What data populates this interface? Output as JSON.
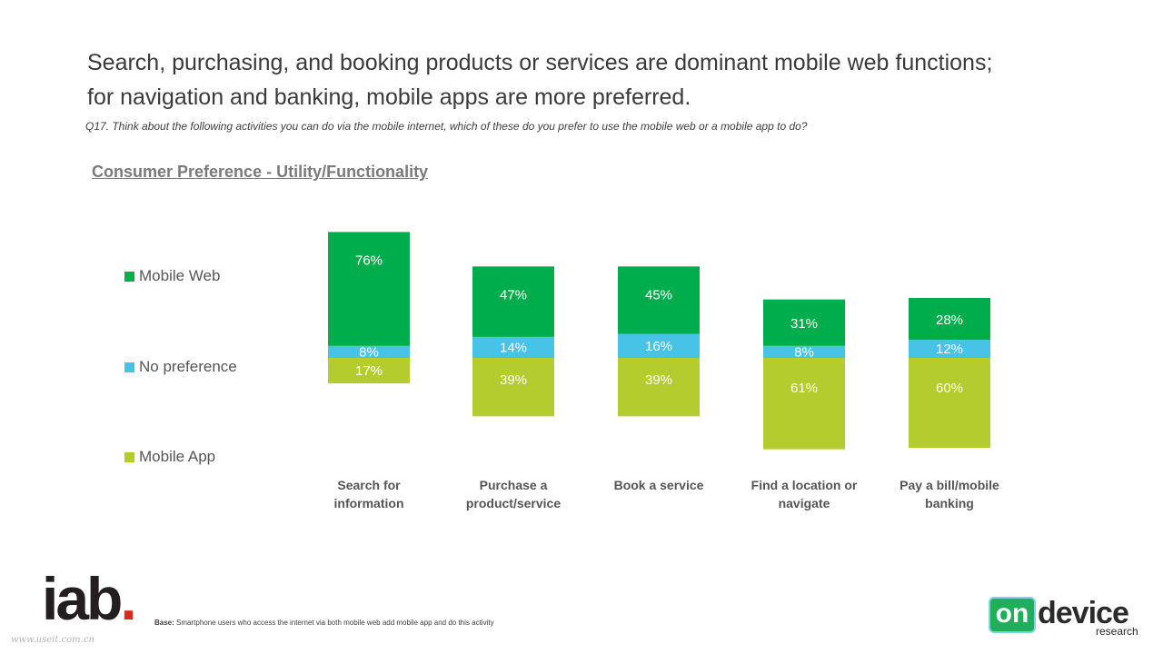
{
  "header": {
    "title_line1": "Search, purchasing, and booking products or services are dominant mobile web functions;",
    "title_line2": "for navigation and banking, mobile apps are more preferred.",
    "question": "Q17. Think about the following activities you can do via the mobile internet, which of these do you prefer to use the mobile web or a mobile app to do?"
  },
  "chart_data": {
    "type": "bar",
    "stacked": true,
    "title": "Consumer Preference - Utility/Functionality",
    "categories": [
      [
        "Search for",
        "information"
      ],
      [
        "Purchase a",
        "product/service"
      ],
      [
        "Book a service"
      ],
      [
        "Find a location or",
        "navigate"
      ],
      [
        "Pay a bill/mobile",
        "banking"
      ]
    ],
    "series": [
      {
        "name": "Mobile App",
        "color": "#b5cc2e",
        "values": [
          17,
          39,
          39,
          61,
          60
        ]
      },
      {
        "name": "No preference",
        "color": "#48c3e8",
        "values": [
          8,
          14,
          16,
          8,
          12
        ]
      },
      {
        "name": "Mobile Web",
        "color": "#00ad4c",
        "values": [
          76,
          47,
          45,
          31,
          28
        ]
      }
    ],
    "value_suffix": "%",
    "legend_position": "left",
    "grid": false
  },
  "legend": {
    "items": [
      {
        "label": "Mobile Web",
        "color": "#00ad4c"
      },
      {
        "label": "No preference",
        "color": "#48c3e8"
      },
      {
        "label": "Mobile App",
        "color": "#b5cc2e"
      }
    ]
  },
  "footer": {
    "iab_logo_text": "iab",
    "iab_logo_dot": ".",
    "base_label": "Base:",
    "base_text": "Smartphone users who access the internet via both mobile web add mobile app and do this activity",
    "watermark": "www.useit.com.cn",
    "ondevice_logo_on": "on",
    "ondevice_logo_device": "device",
    "ondevice_logo_research": "research"
  }
}
